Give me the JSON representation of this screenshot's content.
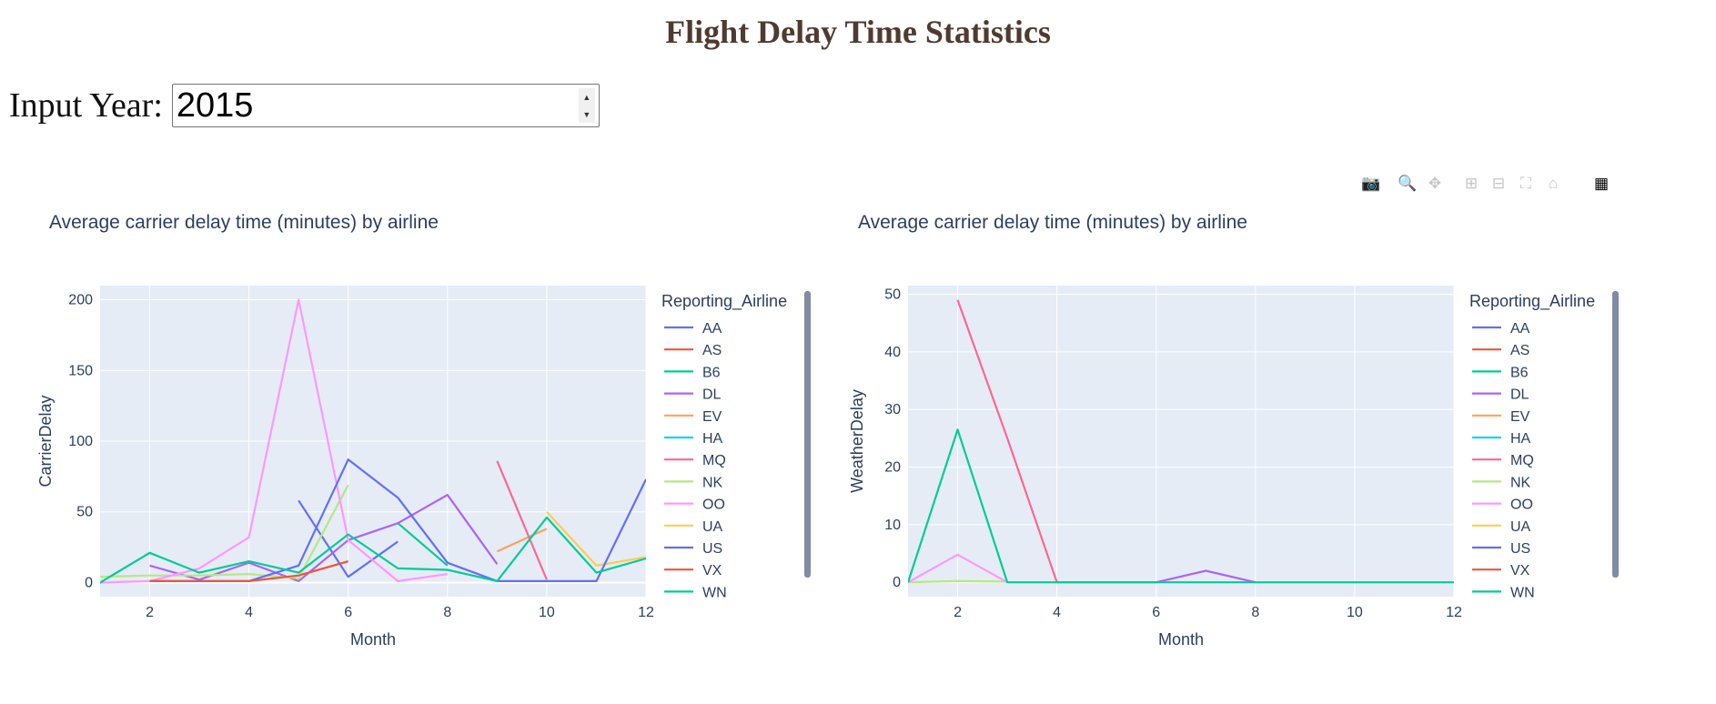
{
  "header": {
    "title": "Flight Delay Time Statistics"
  },
  "year_input": {
    "label": "Input Year:",
    "value": "2015"
  },
  "modebar": [
    {
      "name": "camera-icon",
      "glyph": "📷"
    },
    {
      "name": "zoom-icon",
      "glyph": "🔍"
    },
    {
      "name": "pan-icon",
      "glyph": "✥"
    },
    {
      "name": "zoom-in-icon",
      "glyph": "⊞"
    },
    {
      "name": "zoom-out-icon",
      "glyph": "⊟"
    },
    {
      "name": "autoscale-icon",
      "glyph": "⛶"
    },
    {
      "name": "reset-axes-icon",
      "glyph": "⌂"
    },
    {
      "name": "plotly-logo-icon",
      "glyph": "▦"
    }
  ],
  "colors": {
    "AA": "#636efa",
    "AS": "#EF553B",
    "B6": "#00cc96",
    "DL": "#ab63fa",
    "EV": "#FFA15A",
    "HA": "#19d3f3",
    "MQ": "#FF6692",
    "NK": "#B6E880",
    "OO": "#FF97FF",
    "UA": "#FECB52",
    "US": "#636efa",
    "VX": "#EF553B",
    "WN": "#00cc96",
    "plot_bg": "#E5ECF6",
    "grid": "#ffffff",
    "text": "#2a3f5f",
    "title": "#503A2E"
  },
  "chart_data": [
    {
      "type": "line",
      "title": "Average carrier delay time (minutes) by airline",
      "xlabel": "Month",
      "ylabel": "CarrierDelay",
      "xlim": [
        1,
        12
      ],
      "ylim": [
        -10,
        210
      ],
      "xticks": [
        2,
        4,
        6,
        8,
        10,
        12
      ],
      "yticks": [
        0,
        50,
        100,
        150,
        200
      ],
      "legend_title": "Reporting_Airline",
      "legend_position": "right",
      "grid": true,
      "series": [
        {
          "name": "AA",
          "x": [
            5,
            6,
            7
          ],
          "y": [
            58,
            4,
            29
          ]
        },
        {
          "name": "AS",
          "x": [],
          "y": []
        },
        {
          "name": "B6",
          "x": [
            7,
            8
          ],
          "y": [
            42,
            12
          ]
        },
        {
          "name": "DL",
          "x": [
            2,
            3,
            4,
            5,
            6,
            7,
            8,
            9
          ],
          "y": [
            12,
            2,
            14,
            1,
            30,
            42,
            62,
            13
          ]
        },
        {
          "name": "EV",
          "x": [
            9,
            10
          ],
          "y": [
            22,
            38
          ]
        },
        {
          "name": "HA",
          "x": [],
          "y": []
        },
        {
          "name": "MQ",
          "x": [
            9,
            10
          ],
          "y": [
            86,
            2
          ]
        },
        {
          "name": "NK",
          "x": [
            1,
            2,
            3,
            4,
            5,
            6
          ],
          "y": [
            4,
            5,
            5,
            6,
            3,
            69
          ]
        },
        {
          "name": "OO",
          "x": [
            1,
            2,
            3,
            4,
            5,
            6,
            7,
            8
          ],
          "y": [
            0,
            1,
            10,
            32,
            200,
            30,
            1,
            6
          ]
        },
        {
          "name": "UA",
          "x": [
            10,
            11,
            12
          ],
          "y": [
            50,
            12,
            18
          ]
        },
        {
          "name": "US",
          "x": [
            2,
            3,
            4,
            5,
            6,
            7,
            8,
            9,
            10,
            11,
            12
          ],
          "y": [
            1,
            1,
            1,
            12,
            87,
            60,
            14,
            1,
            1,
            1,
            73
          ]
        },
        {
          "name": "VX",
          "x": [
            2,
            3,
            4,
            5,
            6
          ],
          "y": [
            1,
            1,
            1,
            5,
            15
          ]
        },
        {
          "name": "WN",
          "x": [
            1,
            2,
            3,
            4,
            5,
            6,
            7,
            8,
            9,
            10,
            11,
            12
          ],
          "y": [
            0,
            21,
            7,
            15,
            7,
            34,
            10,
            9,
            1,
            46,
            7,
            17
          ]
        }
      ]
    },
    {
      "type": "line",
      "title": "Average carrier delay time (minutes) by airline",
      "xlabel": "Month",
      "ylabel": "WeatherDelay",
      "xlim": [
        1,
        12
      ],
      "ylim": [
        -2.5,
        51.5
      ],
      "xticks": [
        2,
        4,
        6,
        8,
        10,
        12
      ],
      "yticks": [
        0,
        10,
        20,
        30,
        40,
        50
      ],
      "legend_title": "Reporting_Airline",
      "legend_position": "right",
      "grid": true,
      "series": [
        {
          "name": "AA",
          "x": [],
          "y": []
        },
        {
          "name": "AS",
          "x": [],
          "y": []
        },
        {
          "name": "B6",
          "x": [],
          "y": []
        },
        {
          "name": "DL",
          "x": [
            4,
            5,
            6,
            7,
            8
          ],
          "y": [
            0,
            0,
            0,
            2,
            0
          ]
        },
        {
          "name": "EV",
          "x": [],
          "y": []
        },
        {
          "name": "HA",
          "x": [],
          "y": []
        },
        {
          "name": "MQ",
          "x": [
            2,
            3,
            4
          ],
          "y": [
            49,
            25,
            0
          ]
        },
        {
          "name": "NK",
          "x": [
            1,
            2,
            3
          ],
          "y": [
            0,
            0.2,
            0.1
          ]
        },
        {
          "name": "OO",
          "x": [
            1,
            2,
            3
          ],
          "y": [
            0,
            4.8,
            0
          ]
        },
        {
          "name": "UA",
          "x": [],
          "y": []
        },
        {
          "name": "US",
          "x": [],
          "y": []
        },
        {
          "name": "VX",
          "x": [],
          "y": []
        },
        {
          "name": "WN",
          "x": [
            1,
            2,
            3,
            4,
            5,
            6,
            7,
            8,
            9,
            10,
            11,
            12
          ],
          "y": [
            0,
            26.5,
            0,
            0,
            0,
            0,
            0,
            0,
            0,
            0,
            0,
            0
          ]
        }
      ]
    }
  ]
}
